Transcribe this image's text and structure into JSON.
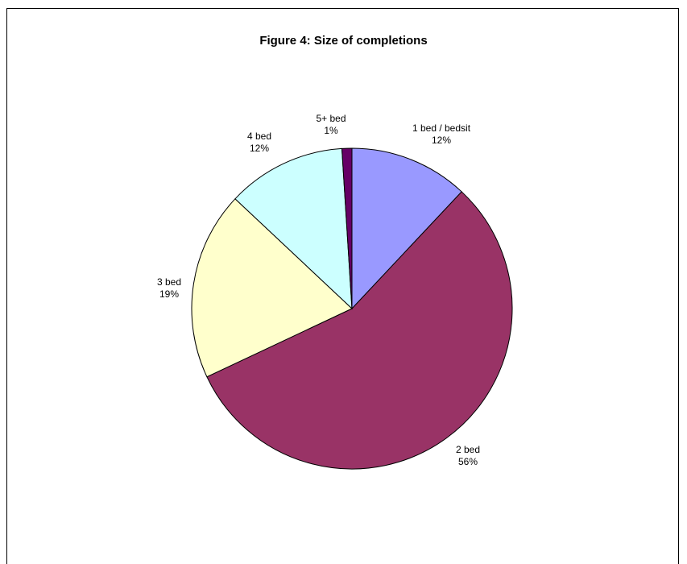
{
  "chart_data": {
    "type": "pie",
    "title": "Figure 4: Size of completions",
    "legend": "none",
    "slices": [
      {
        "name": "1 bed / bedsit",
        "value": 12,
        "label": "12%",
        "color": "#9999FF"
      },
      {
        "name": "2 bed",
        "value": 56,
        "label": "56%",
        "color": "#993366"
      },
      {
        "name": "3 bed",
        "value": 19,
        "label": "19%",
        "color": "#FFFFCC"
      },
      {
        "name": "4 bed",
        "value": 12,
        "label": "12%",
        "color": "#CCFFFF"
      },
      {
        "name": "5+ bed",
        "value": 1,
        "label": "1%",
        "color": "#660066"
      }
    ]
  }
}
